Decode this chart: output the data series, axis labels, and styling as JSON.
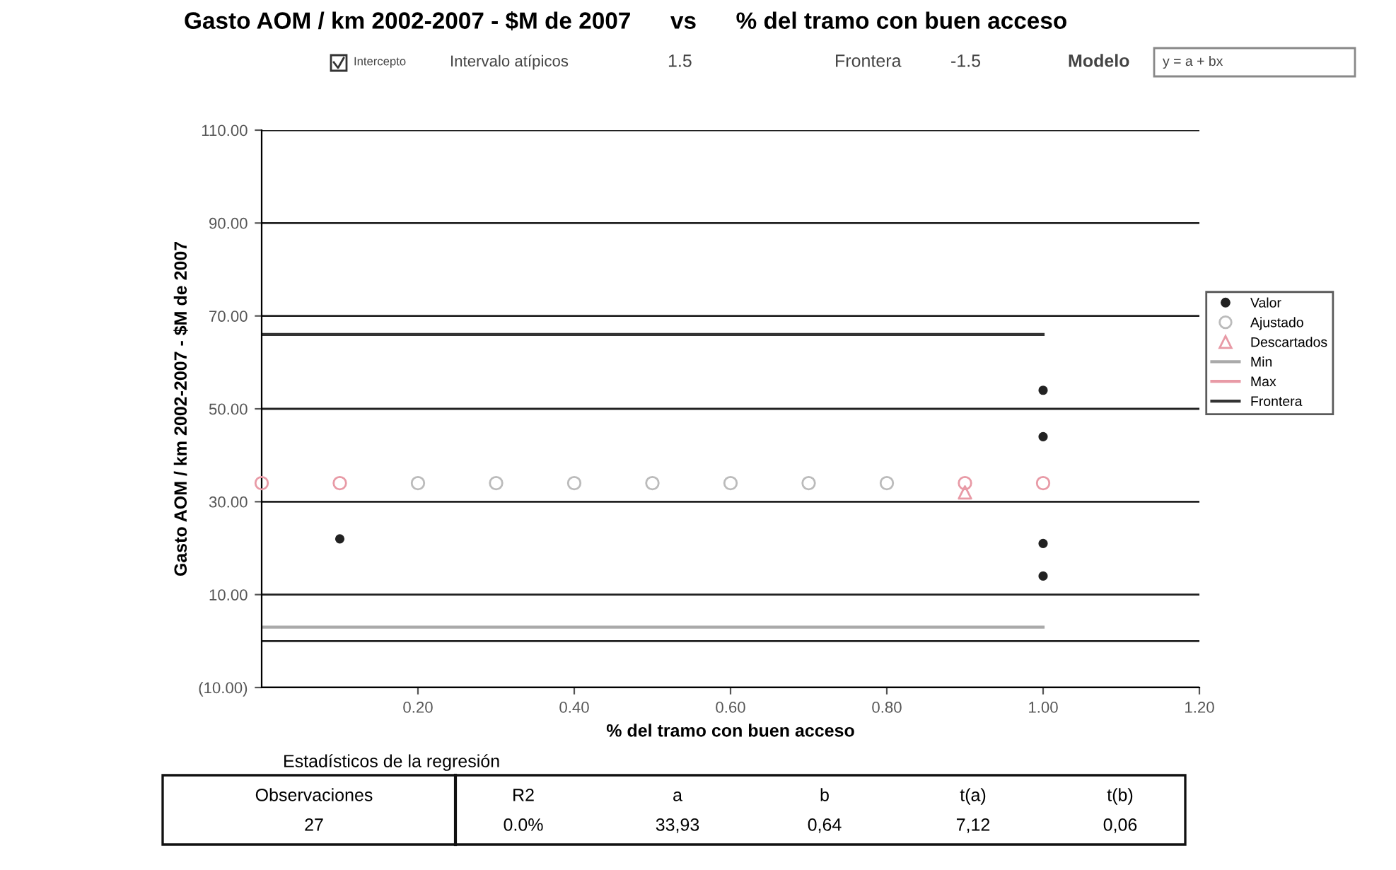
{
  "chart_data": {
    "type": "scatter",
    "title": "Gasto AOM / km 2002-2007 - $M de 2007      vs      % del tramo con buen acceso",
    "xlabel": "% del tramo con buen acceso",
    "ylabel": "Gasto AOM / km 2002-2007 - $M de 2007",
    "xlim": [
      0,
      1.2
    ],
    "xticks": [
      {
        "value": 0.2,
        "label": "0.20"
      },
      {
        "value": 0.4,
        "label": "0.40"
      },
      {
        "value": 0.6,
        "label": "0.60"
      },
      {
        "value": 0.8,
        "label": "0.80"
      },
      {
        "value": 1.0,
        "label": "1.00"
      },
      {
        "value": 1.2,
        "label": "1.20"
      }
    ],
    "ylim": [
      -10,
      110
    ],
    "yticks": [
      {
        "value": -10,
        "label": "(10.00)"
      },
      {
        "value": 10,
        "label": "10.00"
      },
      {
        "value": 30,
        "label": "30.00"
      },
      {
        "value": 50,
        "label": "50.00"
      },
      {
        "value": 70,
        "label": "70.00"
      },
      {
        "value": 90,
        "label": "90.00"
      },
      {
        "value": 110,
        "label": "110.00"
      }
    ],
    "grid": "y",
    "legend": "right",
    "series": [
      {
        "name": "Valor",
        "marker": "circle",
        "color": "#222222",
        "x": [
          0.1,
          1.0,
          1.0,
          1.0,
          1.0
        ],
        "values": [
          22,
          54,
          44,
          21,
          14
        ]
      },
      {
        "name": "Ajustado",
        "marker": "circle",
        "color": "#bbbbbb",
        "x": [
          0,
          0.1,
          0.2,
          0.3,
          0.4,
          0.5,
          0.6,
          0.7,
          0.8,
          0.9,
          1.0
        ],
        "values": [
          34,
          34,
          34,
          34,
          34,
          34,
          34,
          34,
          34,
          34,
          34
        ],
        "colors": [
          "#e89aa6",
          "#e89aa6",
          "#bbbbbb",
          "#bbbbbb",
          "#bbbbbb",
          "#bbbbbb",
          "#bbbbbb",
          "#bbbbbb",
          "#bbbbbb",
          "#e89aa6",
          "#e89aa6"
        ]
      },
      {
        "name": "Descartados",
        "marker": "triangle",
        "color": "#e89aa6",
        "x": [
          0.9
        ],
        "values": [
          32
        ]
      },
      {
        "name": "Min",
        "type": "line",
        "color": "#aaaaaa",
        "x": [
          0,
          1.0
        ],
        "values": [
          3,
          3
        ]
      },
      {
        "name": "Max",
        "type": "line",
        "color": "#e89aa6"
      },
      {
        "name": "Frontera",
        "type": "line",
        "color": "#333333",
        "x": [
          0,
          1.0
        ],
        "values": [
          66,
          66
        ]
      }
    ],
    "annotations": [
      "Intercepto",
      "Intervalo atípicos",
      "1.5",
      "Frontera",
      "-1.5",
      "Modelo",
      "y = a + bx",
      "Estadísticos de la regresión",
      "Observaciones",
      "R2",
      "a",
      "b",
      "t(a)",
      "t(b)",
      "27",
      "0.0%",
      "33,93",
      "0,64",
      "7,12",
      "0,06"
    ]
  }
}
